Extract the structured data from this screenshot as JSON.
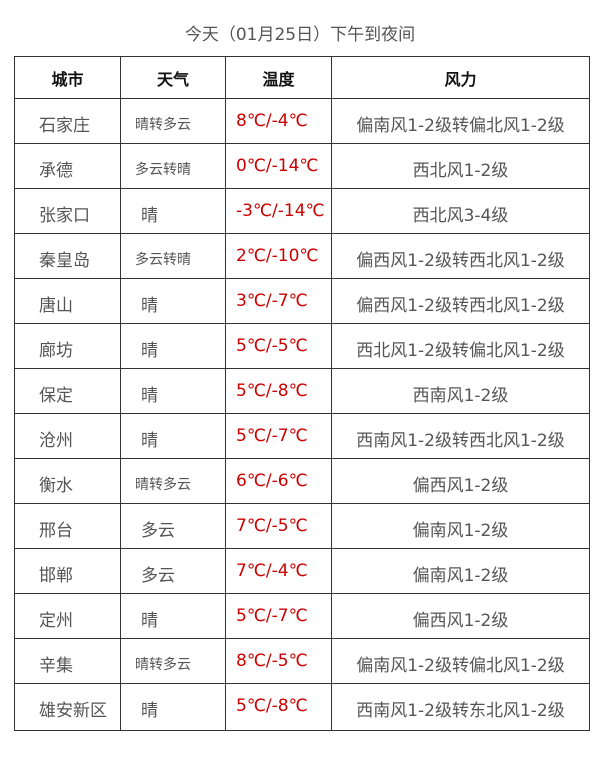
{
  "title": "今天（01月25日）下午到夜间",
  "headers": [
    "城市",
    "天气",
    "温度",
    "风力"
  ],
  "colors": {
    "temperature": "#cc0000",
    "text": "#555555",
    "border": "#333333"
  },
  "rows": [
    {
      "city": "石家庄",
      "weather": "晴转多云",
      "temp": "8℃/-4℃",
      "wind": "偏南风1-2级转偏北风1-2级"
    },
    {
      "city": "承德",
      "weather": "多云转晴",
      "temp": "0℃/-14℃",
      "wind": "西北风1-2级"
    },
    {
      "city": "张家口",
      "weather": "晴",
      "temp": "-3℃/-14℃",
      "wind": "西北风3-4级"
    },
    {
      "city": "秦皇岛",
      "weather": "多云转晴",
      "temp": "2℃/-10℃",
      "wind": "偏西风1-2级转西北风1-2级"
    },
    {
      "city": "唐山",
      "weather": "晴",
      "temp": "3℃/-7℃",
      "wind": "偏西风1-2级转西北风1-2级"
    },
    {
      "city": "廊坊",
      "weather": "晴",
      "temp": "5℃/-5℃",
      "wind": "西北风1-2级转偏北风1-2级"
    },
    {
      "city": "保定",
      "weather": "晴",
      "temp": "5℃/-8℃",
      "wind": "西南风1-2级"
    },
    {
      "city": "沧州",
      "weather": "晴",
      "temp": "5℃/-7℃",
      "wind": "西南风1-2级转西北风1-2级"
    },
    {
      "city": "衡水",
      "weather": "晴转多云",
      "temp": "6℃/-6℃",
      "wind": "偏西风1-2级"
    },
    {
      "city": "邢台",
      "weather": "多云",
      "temp": "7℃/-5℃",
      "wind": "偏南风1-2级"
    },
    {
      "city": "邯郸",
      "weather": "多云",
      "temp": "7℃/-4℃",
      "wind": "偏南风1-2级"
    },
    {
      "city": "定州",
      "weather": "晴",
      "temp": "5℃/-7℃",
      "wind": "偏西风1-2级"
    },
    {
      "city": "辛集",
      "weather": "晴转多云",
      "temp": "8℃/-5℃",
      "wind": "偏南风1-2级转偏北风1-2级"
    },
    {
      "city": "雄安新区",
      "weather": "晴",
      "temp": "5℃/-8℃",
      "wind": "西南风1-2级转东北风1-2级"
    }
  ]
}
